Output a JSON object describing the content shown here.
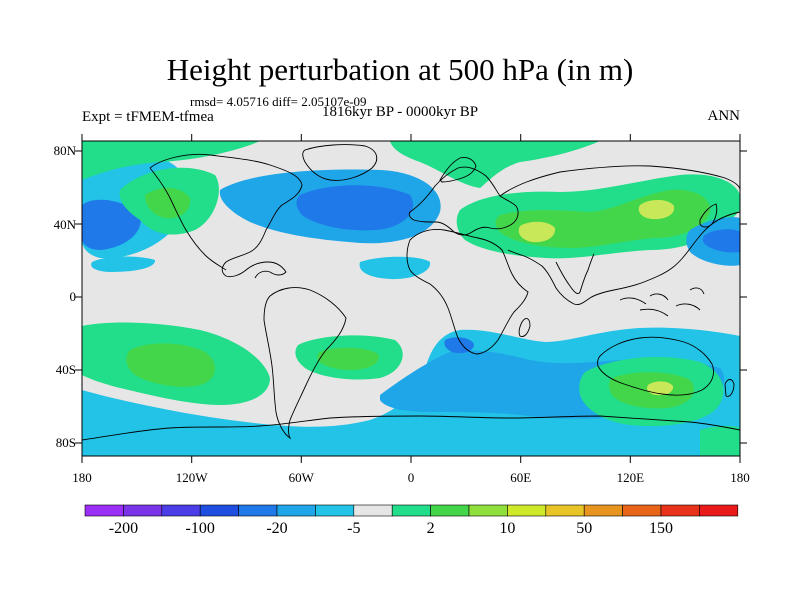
{
  "header": {
    "title": "Height perturbation at 500 hPa (in m)",
    "stats": "rmsd= 4.05716 diff= 2.05107e-09",
    "experiment": "Expt = tFMEM-tfmea",
    "period": "1816kyr BP - 0000kyr BP",
    "season": "ANN"
  },
  "axes": {
    "lon_ticks": [
      "180",
      "120W",
      "60W",
      "0",
      "60E",
      "120E",
      "180"
    ],
    "lat_ticks": [
      "80N",
      "40N",
      "0",
      "40S",
      "80S"
    ]
  },
  "colorbar": {
    "labels": [
      "-200",
      "-100",
      "-20",
      "-5",
      "2",
      "10",
      "50",
      "150"
    ],
    "colors": [
      "#9b2ff5",
      "#7b35e8",
      "#4b3ee6",
      "#1f4fe0",
      "#1f79e8",
      "#1fa6e8",
      "#22c3e6",
      "#e6e6e6",
      "#22dd8a",
      "#44d64a",
      "#8fe03a",
      "#d0e82a",
      "#e8c427",
      "#e89520",
      "#e86517",
      "#e8321a",
      "#e81a1a"
    ]
  },
  "palette": {
    "neutral": "#e6e6e6",
    "light_blue": "#22c3e6",
    "blue": "#1fa6e8",
    "dark_blue": "#1f79e8",
    "teal": "#22dd8a",
    "green": "#44d64a",
    "yellow_green": "#c8e85a",
    "coast": "#000000"
  }
}
